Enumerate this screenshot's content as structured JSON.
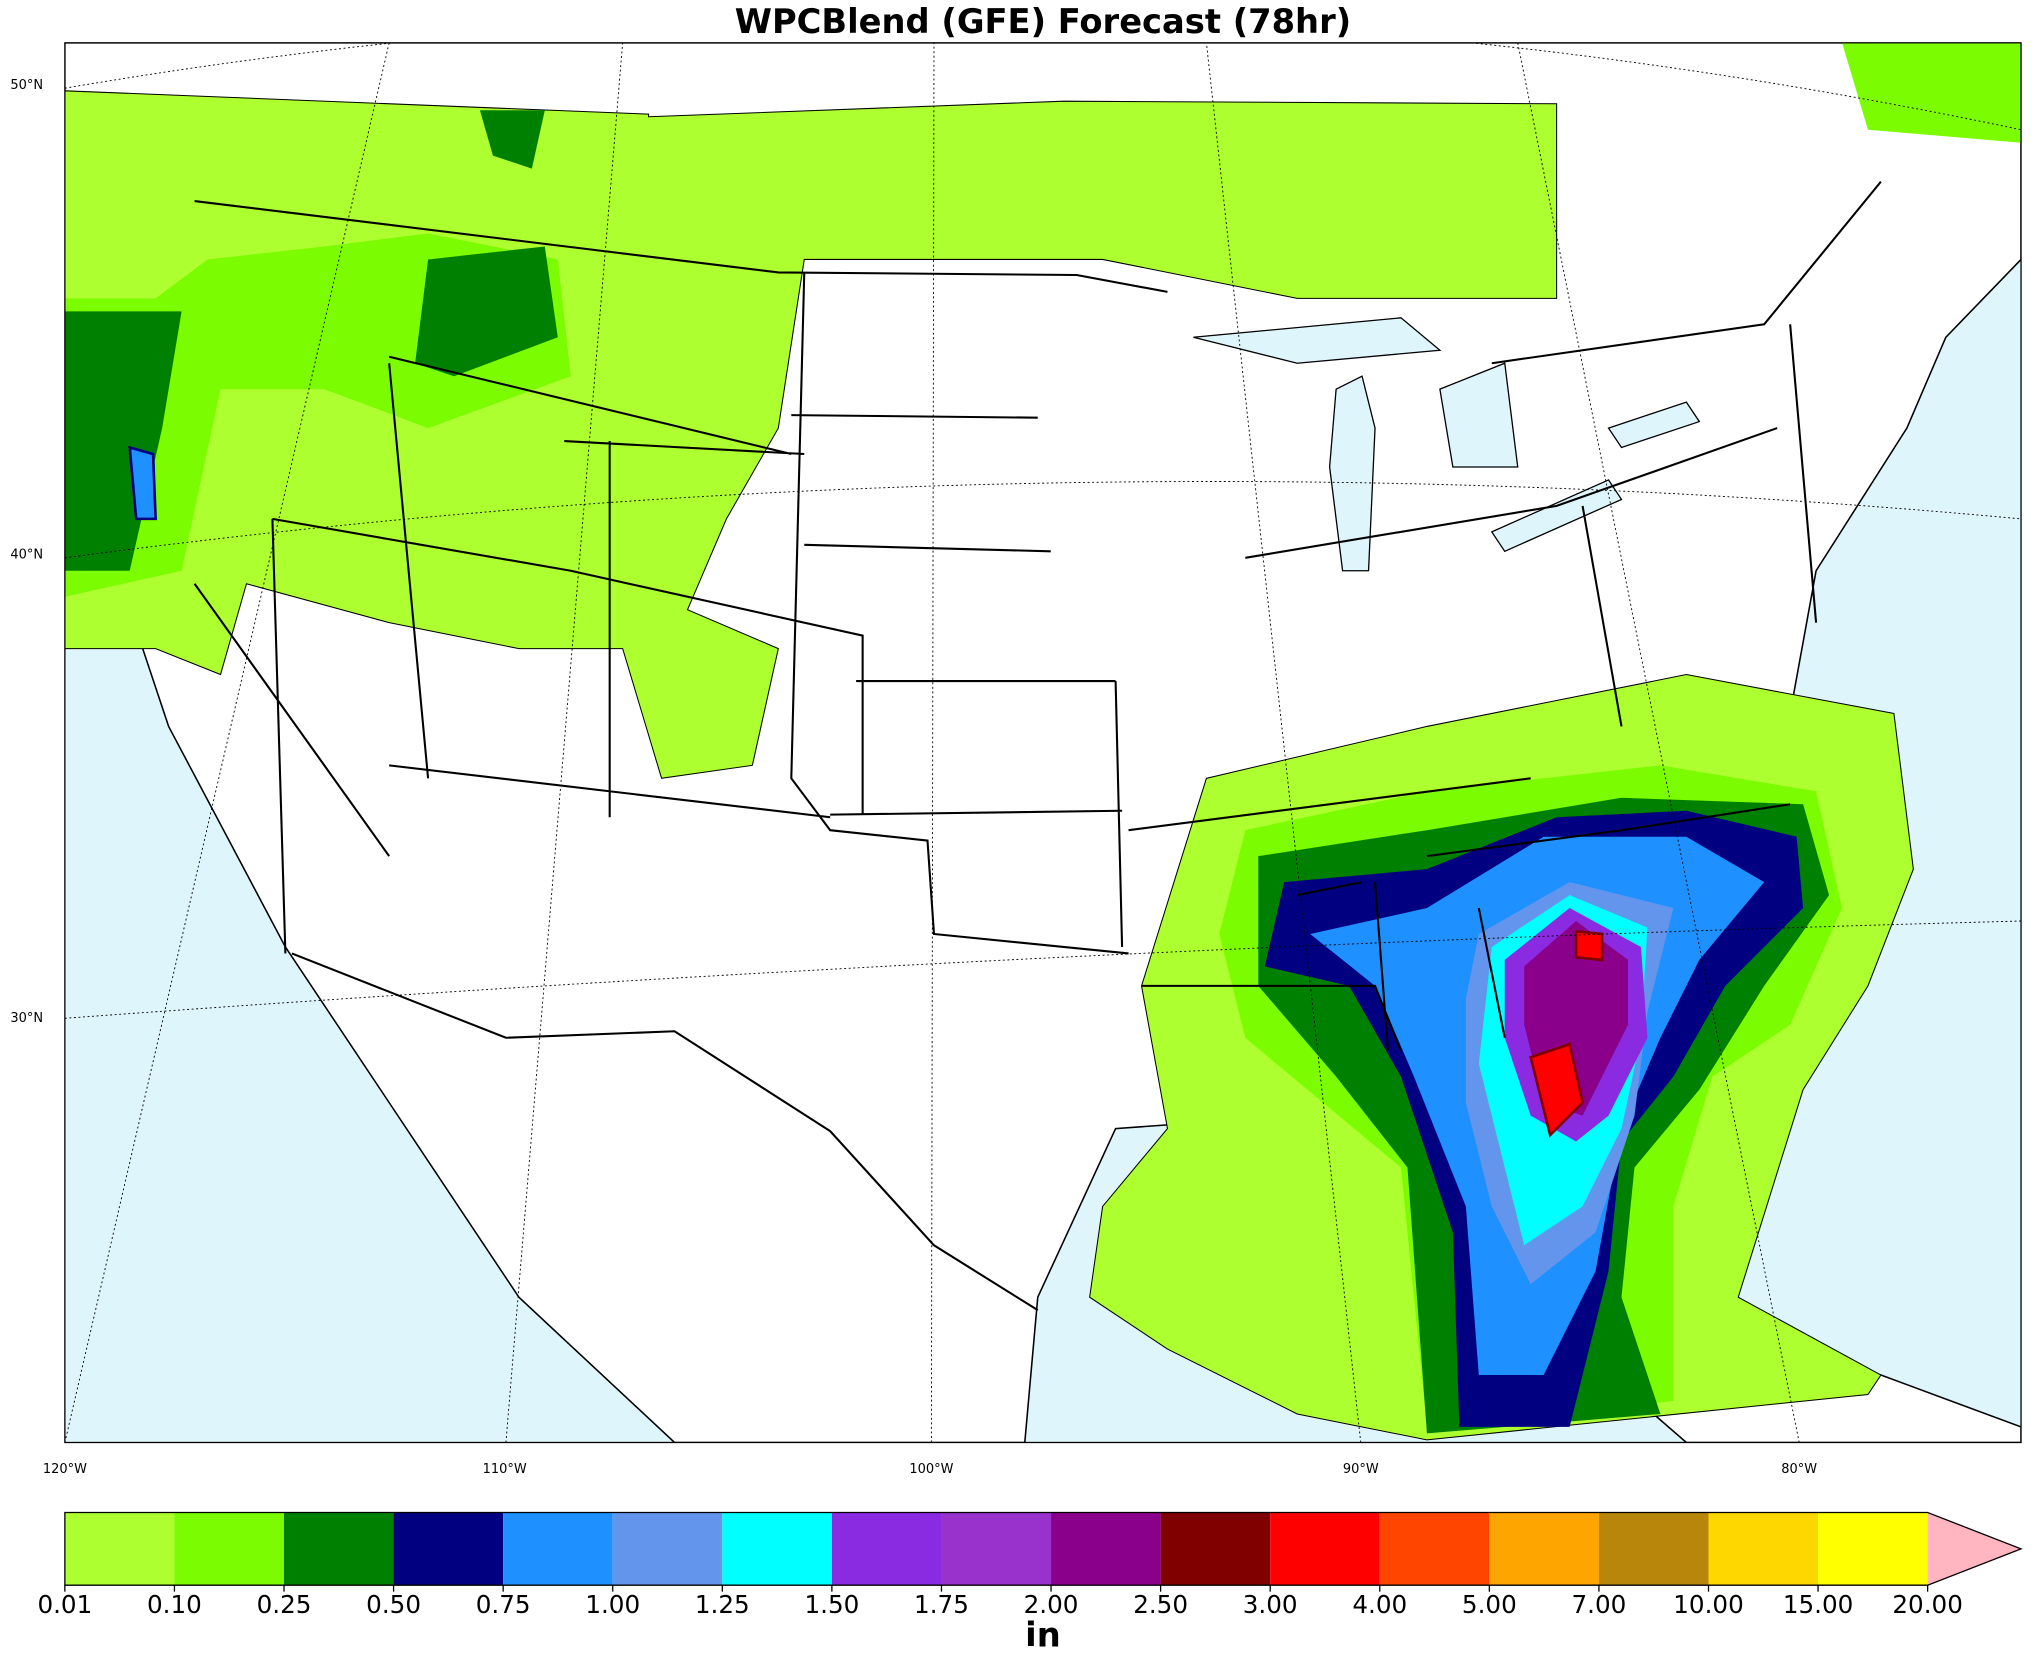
{
  "title": "WPCBlend (GFE) Forecast (78hr)",
  "map": {
    "lat_labels": [
      "50°N",
      "40°N",
      "30°N"
    ],
    "lon_labels": [
      "120°W",
      "110°W",
      "100°W",
      "90°W",
      "80°W"
    ]
  },
  "colorbar": {
    "ticks": [
      0.01,
      {
        "value": 0.1,
        "label": "0.10"
      },
      0.25,
      {
        "value": 0.5,
        "label": "0.50"
      },
      0.75,
      {
        "value": 1,
        "label": "1.00"
      },
      1.25,
      {
        "value": 1.5,
        "label": "1.50"
      },
      1.75,
      {
        "value": 2,
        "label": "2.00"
      },
      {
        "value": 2.5,
        "label": "2.50"
      },
      {
        "value": 3,
        "label": "3.00"
      },
      {
        "value": 4,
        "label": "4.00"
      },
      {
        "value": 5,
        "label": "5.00"
      },
      {
        "value": 7,
        "label": "7.00"
      },
      {
        "value": 10,
        "label": "10.00"
      },
      {
        "value": 15,
        "label": "15.00"
      },
      {
        "value": 20,
        "label": "20.00"
      }
    ],
    "colors": [
      "#adff2f",
      "#7cfc00",
      "#008000",
      "#000080",
      "#1e90ff",
      "#6495ed",
      "#00ffff",
      "#8a2be2",
      "#9932cc",
      "#8b008b",
      "#800000",
      "#ff0000",
      "#ff4500",
      "#ffa500",
      "#b8860b",
      "#ffd700",
      "#ffff00"
    ],
    "extend_color": "#ffb6c1",
    "label": "in"
  }
}
